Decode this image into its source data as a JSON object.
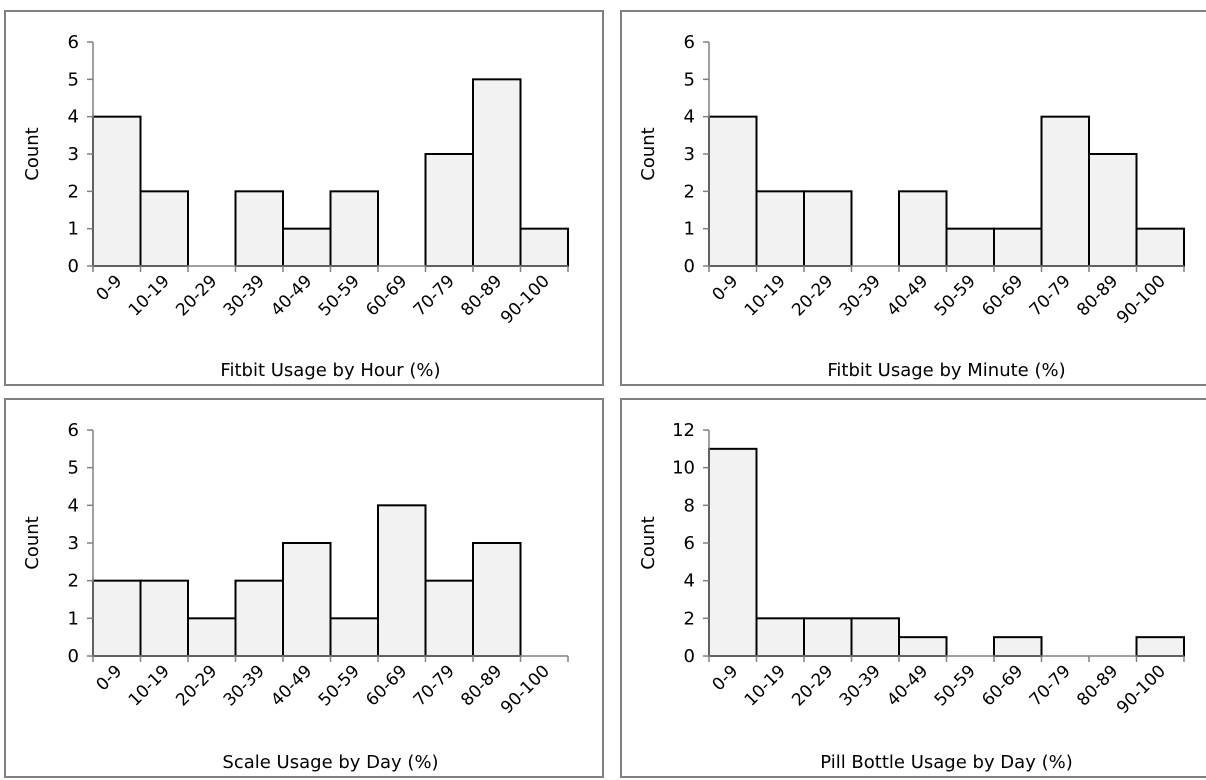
{
  "chart_data": [
    {
      "type": "bar",
      "categories": [
        "0-9",
        "10-19",
        "20-29",
        "30-39",
        "40-49",
        "50-59",
        "60-69",
        "70-79",
        "80-89",
        "90-100"
      ],
      "values": [
        4,
        2,
        0,
        2,
        1,
        2,
        0,
        3,
        5,
        1
      ],
      "title": "",
      "xlabel": "Fitbit Usage by Hour (%)",
      "ylabel": "Count",
      "ylim": [
        0,
        6
      ],
      "yticks": [
        0,
        1,
        2,
        3,
        4,
        5,
        6
      ],
      "grid": false
    },
    {
      "type": "bar",
      "categories": [
        "0-9",
        "10-19",
        "20-29",
        "30-39",
        "40-49",
        "50-59",
        "60-69",
        "70-79",
        "80-89",
        "90-100"
      ],
      "values": [
        4,
        2,
        2,
        0,
        2,
        1,
        1,
        4,
        3,
        1
      ],
      "title": "",
      "xlabel": "Fitbit Usage by Minute (%)",
      "ylabel": "Count",
      "ylim": [
        0,
        6
      ],
      "yticks": [
        0,
        1,
        2,
        3,
        4,
        5,
        6
      ],
      "grid": false
    },
    {
      "type": "bar",
      "categories": [
        "0-9",
        "10-19",
        "20-29",
        "30-39",
        "40-49",
        "50-59",
        "60-69",
        "70-79",
        "80-89",
        "90-100"
      ],
      "values": [
        2,
        2,
        1,
        2,
        3,
        1,
        4,
        2,
        3,
        0
      ],
      "title": "",
      "xlabel": "Scale Usage by Day (%)",
      "ylabel": "Count",
      "ylim": [
        0,
        6
      ],
      "yticks": [
        0,
        1,
        2,
        3,
        4,
        5,
        6
      ],
      "grid": false
    },
    {
      "type": "bar",
      "categories": [
        "0-9",
        "10-19",
        "20-29",
        "30-39",
        "40-49",
        "50-59",
        "60-69",
        "70-79",
        "80-89",
        "90-100"
      ],
      "values": [
        11,
        2,
        2,
        2,
        1,
        0,
        1,
        0,
        0,
        1
      ],
      "title": "",
      "xlabel": "Pill Bottle Usage by Day (%)",
      "ylabel": "Count",
      "ylim": [
        0,
        12
      ],
      "yticks": [
        0,
        2,
        4,
        6,
        8,
        10,
        12
      ],
      "grid": false
    }
  ]
}
